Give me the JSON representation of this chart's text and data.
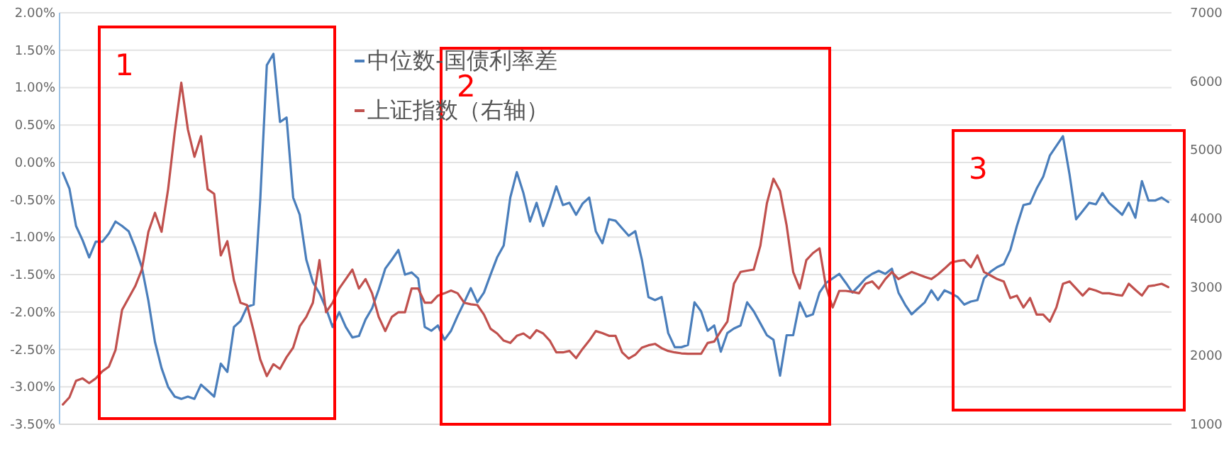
{
  "chart_data": {
    "type": "line",
    "categories": [
      null,
      null,
      null,
      null,
      null,
      null,
      null,
      null,
      null,
      null,
      null,
      null,
      null,
      null,
      null,
      null,
      null,
      null,
      null,
      null,
      null,
      null,
      null,
      null,
      null,
      null,
      null,
      null,
      null,
      null,
      null,
      null,
      null,
      null,
      null,
      null,
      null,
      null,
      null,
      null,
      null,
      null,
      null,
      null,
      null,
      null,
      null,
      null,
      null,
      null,
      null,
      null,
      null,
      null,
      null,
      null,
      null,
      null,
      null,
      null,
      null,
      null,
      null,
      null,
      null,
      null,
      null,
      null,
      null,
      null,
      null,
      null,
      null,
      null,
      null,
      null,
      null,
      null,
      null,
      null,
      null,
      null,
      null,
      null,
      null,
      null,
      null,
      null,
      null,
      null,
      null,
      null,
      null,
      null,
      null,
      null,
      null,
      null,
      null,
      null,
      null,
      null,
      null,
      null,
      null,
      null,
      null,
      null,
      null,
      null,
      null,
      null,
      null,
      null,
      null,
      null,
      null,
      null,
      null,
      null,
      null,
      null,
      null,
      null,
      null,
      null,
      null,
      null,
      null,
      null,
      null,
      null,
      null,
      null,
      null,
      null,
      null,
      null,
      null,
      null,
      null,
      null,
      null,
      null,
      null,
      null,
      null,
      null,
      null,
      null,
      null,
      null,
      null,
      null,
      null,
      null,
      null,
      null,
      null,
      null,
      null,
      null,
      null,
      null,
      null,
      null,
      null,
      null,
      null
    ],
    "series": [
      {
        "name": "中位数-国债利率差",
        "color": "#4a7ebb",
        "values": [
          -0.14,
          -0.35,
          -0.85,
          -1.04,
          -1.27,
          -1.06,
          -1.06,
          -0.95,
          -0.79,
          -0.85,
          -0.92,
          -1.14,
          -1.4,
          -1.85,
          -2.4,
          -2.75,
          -3.0,
          -3.13,
          -3.16,
          -3.13,
          -3.16,
          -2.97,
          -3.05,
          -3.13,
          -2.69,
          -2.8,
          -2.2,
          -2.12,
          -1.93,
          -1.9,
          -0.5,
          1.3,
          1.45,
          0.54,
          0.6,
          -0.47,
          -0.7,
          -1.3,
          -1.6,
          -1.75,
          -1.95,
          -2.2,
          -2.0,
          -2.2,
          -2.34,
          -2.32,
          -2.1,
          -1.95,
          -1.7,
          -1.42,
          -1.3,
          -1.17,
          -1.5,
          -1.47,
          -1.55,
          -2.2,
          -2.25,
          -2.18,
          -2.37,
          -2.25,
          -2.05,
          -1.87,
          -1.68,
          -1.87,
          -1.74,
          -1.5,
          -1.27,
          -1.11,
          -0.47,
          -0.13,
          -0.41,
          -0.79,
          -0.54,
          -0.85,
          -0.6,
          -0.32,
          -0.57,
          -0.54,
          -0.7,
          -0.55,
          -0.47,
          -0.92,
          -1.08,
          -0.76,
          -0.78,
          -0.88,
          -0.98,
          -0.92,
          -1.3,
          -1.8,
          -1.84,
          -1.8,
          -2.28,
          -2.47,
          -2.47,
          -2.44,
          -1.87,
          -1.99,
          -2.25,
          -2.18,
          -2.53,
          -2.28,
          -2.22,
          -2.18,
          -1.87,
          -1.99,
          -2.15,
          -2.31,
          -2.37,
          -2.85,
          -2.31,
          -2.31,
          -1.87,
          -2.06,
          -2.03,
          -1.74,
          -1.61,
          -1.55,
          -1.49,
          -1.61,
          -1.74,
          -1.65,
          -1.55,
          -1.49,
          -1.45,
          -1.49,
          -1.42,
          -1.74,
          -1.9,
          -2.03,
          -1.95,
          -1.87,
          -1.71,
          -1.84,
          -1.71,
          -1.75,
          -1.8,
          -1.9,
          -1.86,
          -1.84,
          -1.55,
          -1.46,
          -1.4,
          -1.36,
          -1.17,
          -0.85,
          -0.57,
          -0.55,
          -0.35,
          -0.19,
          0.09,
          0.22,
          0.35,
          -0.16,
          -0.76,
          -0.65,
          -0.54,
          -0.56,
          -0.41,
          -0.54,
          -0.62,
          -0.7,
          -0.54,
          -0.74,
          -0.25,
          -0.51,
          -0.51,
          -0.47,
          -0.53
        ]
      },
      {
        "name": "上证指数（右轴）",
        "color": "#c0504d",
        "axis": "y2",
        "values": [
          1289,
          1393,
          1634,
          1669,
          1600,
          1669,
          1772,
          1841,
          2082,
          2669,
          2841,
          3014,
          3255,
          3807,
          4083,
          3807,
          4428,
          5255,
          5979,
          5300,
          4900,
          5200,
          4428,
          4359,
          3462,
          3669,
          3100,
          2772,
          2738,
          2359,
          1945,
          1703,
          1876,
          1807,
          1979,
          2117,
          2428,
          2566,
          2772,
          3393,
          2634,
          2772,
          2979,
          3117,
          3255,
          2979,
          3117,
          2910,
          2566,
          2359,
          2566,
          2634,
          2634,
          2979,
          2979,
          2772,
          2772,
          2876,
          2910,
          2950,
          2910,
          2772,
          2750,
          2738,
          2600,
          2393,
          2324,
          2220,
          2186,
          2290,
          2324,
          2255,
          2372,
          2324,
          2220,
          2048,
          2048,
          2069,
          1965,
          2100,
          2220,
          2359,
          2330,
          2290,
          2290,
          2048,
          1958,
          2014,
          2117,
          2152,
          2172,
          2110,
          2069,
          2048,
          2034,
          2027,
          2027,
          2027,
          2186,
          2207,
          2359,
          2497,
          3050,
          3221,
          3240,
          3255,
          3600,
          4221,
          4580,
          4400,
          3900,
          3221,
          2979,
          3393,
          3496,
          3565,
          3000,
          2703,
          2945,
          2945,
          2930,
          2910,
          3048,
          3083,
          2979,
          3117,
          3221,
          3117,
          3170,
          3221,
          3186,
          3150,
          3117,
          3186,
          3270,
          3359,
          3380,
          3393,
          3290,
          3462,
          3221,
          3170,
          3117,
          3083,
          2841,
          2876,
          2703,
          2841,
          2600,
          2600,
          2497,
          2703,
          3048,
          3083,
          2980,
          2876,
          2979,
          2950,
          2910,
          2910,
          2890,
          2876,
          3048,
          2960,
          2876,
          3014,
          3027,
          3048,
          3000
        ]
      }
    ],
    "ylim": [
      -3.5,
      2.0
    ],
    "yticks": [
      {
        "value": -3.5,
        "label": "-3.50%"
      },
      {
        "value": -3.0,
        "label": "-3.00%"
      },
      {
        "value": -2.5,
        "label": "-2.50%"
      },
      {
        "value": -2.0,
        "label": "-2.00%"
      },
      {
        "value": -1.5,
        "label": "-1.50%"
      },
      {
        "value": -1.0,
        "label": "-1.00%"
      },
      {
        "value": -0.5,
        "label": "-0.50%"
      },
      {
        "value": 0,
        "label": "0.00%"
      },
      {
        "value": 0.5,
        "label": "0.50%"
      },
      {
        "value": 1.0,
        "label": "1.00%"
      },
      {
        "value": 1.5,
        "label": "1.50%"
      },
      {
        "value": 2.0,
        "label": "2.00%"
      }
    ],
    "y2lim": [
      1000,
      7000
    ],
    "y2ticks": [
      1000,
      2000,
      3000,
      4000,
      5000,
      6000,
      7000
    ],
    "annotations": [
      "1",
      "2",
      "3"
    ],
    "grid": "y",
    "legend": "top",
    "tick_labels": "y",
    "marker": "none",
    "line_style": "solid"
  }
}
